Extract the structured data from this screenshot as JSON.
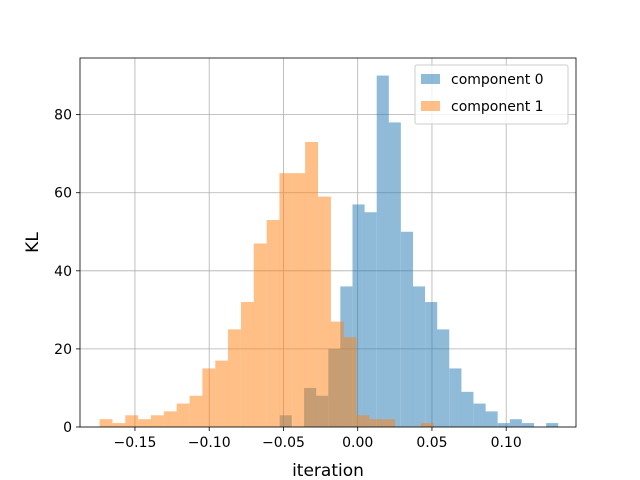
{
  "chart_data": {
    "type": "bar",
    "title": "",
    "xlabel": "iteration",
    "ylabel": "KL",
    "xlim": [
      -0.187,
      0.147
    ],
    "ylim": [
      0,
      94.5
    ],
    "grid": true,
    "legend_position": "top-right",
    "x_ticks": [
      {
        "value": -0.15,
        "label": "−0.15"
      },
      {
        "value": -0.1,
        "label": "−0.10"
      },
      {
        "value": -0.05,
        "label": "−0.05"
      },
      {
        "value": 0.0,
        "label": "0.00"
      },
      {
        "value": 0.05,
        "label": "0.05"
      },
      {
        "value": 0.1,
        "label": "0.10"
      }
    ],
    "y_ticks": [
      {
        "value": 0,
        "label": "0"
      },
      {
        "value": 20,
        "label": "20"
      },
      {
        "value": 40,
        "label": "40"
      },
      {
        "value": 60,
        "label": "60"
      },
      {
        "value": 80,
        "label": "80"
      }
    ],
    "series": [
      {
        "name": "component 0",
        "color": "#1f77b4",
        "opacity": 0.5,
        "bin_width": 0.00815,
        "bins": [
          {
            "x0": -0.0525,
            "count": 3
          },
          {
            "x0": -0.0361,
            "count": 10
          },
          {
            "x0": -0.028,
            "count": 8
          },
          {
            "x0": -0.0198,
            "count": 20
          },
          {
            "x0": -0.0117,
            "count": 36
          },
          {
            "x0": -0.0035,
            "count": 57
          },
          {
            "x0": 0.0046,
            "count": 55
          },
          {
            "x0": 0.0128,
            "count": 90
          },
          {
            "x0": 0.0209,
            "count": 78
          },
          {
            "x0": 0.0291,
            "count": 50
          },
          {
            "x0": 0.0372,
            "count": 36
          },
          {
            "x0": 0.0454,
            "count": 32
          },
          {
            "x0": 0.0535,
            "count": 25
          },
          {
            "x0": 0.0617,
            "count": 15
          },
          {
            "x0": 0.0698,
            "count": 9
          },
          {
            "x0": 0.078,
            "count": 6
          },
          {
            "x0": 0.0861,
            "count": 4
          },
          {
            "x0": 0.0943,
            "count": 1
          },
          {
            "x0": 0.1024,
            "count": 2
          },
          {
            "x0": 0.1106,
            "count": 1
          },
          {
            "x0": 0.1269,
            "count": 1
          }
        ]
      },
      {
        "name": "component 1",
        "color": "#ff7f0e",
        "opacity": 0.5,
        "bin_width": 0.00865,
        "bins": [
          {
            "x0": -0.1738,
            "count": 2
          },
          {
            "x0": -0.1651,
            "count": 1
          },
          {
            "x0": -0.1565,
            "count": 3
          },
          {
            "x0": -0.1478,
            "count": 2
          },
          {
            "x0": -0.1392,
            "count": 3
          },
          {
            "x0": -0.1305,
            "count": 4
          },
          {
            "x0": -0.1219,
            "count": 6
          },
          {
            "x0": -0.1132,
            "count": 8
          },
          {
            "x0": -0.1046,
            "count": 15
          },
          {
            "x0": -0.0959,
            "count": 17
          },
          {
            "x0": -0.0873,
            "count": 25
          },
          {
            "x0": -0.0786,
            "count": 32
          },
          {
            "x0": -0.07,
            "count": 47
          },
          {
            "x0": -0.0613,
            "count": 53
          },
          {
            "x0": -0.0527,
            "count": 65
          },
          {
            "x0": -0.044,
            "count": 65
          },
          {
            "x0": -0.0354,
            "count": 73
          },
          {
            "x0": -0.0267,
            "count": 59
          },
          {
            "x0": -0.0181,
            "count": 27
          },
          {
            "x0": -0.0094,
            "count": 23
          },
          {
            "x0": -0.0008,
            "count": 3
          },
          {
            "x0": 0.0079,
            "count": 2
          },
          {
            "x0": 0.0165,
            "count": 2
          },
          {
            "x0": 0.0252,
            "count": 0
          },
          {
            "x0": 0.0338,
            "count": 0
          },
          {
            "x0": 0.0425,
            "count": 1
          }
        ]
      }
    ]
  }
}
